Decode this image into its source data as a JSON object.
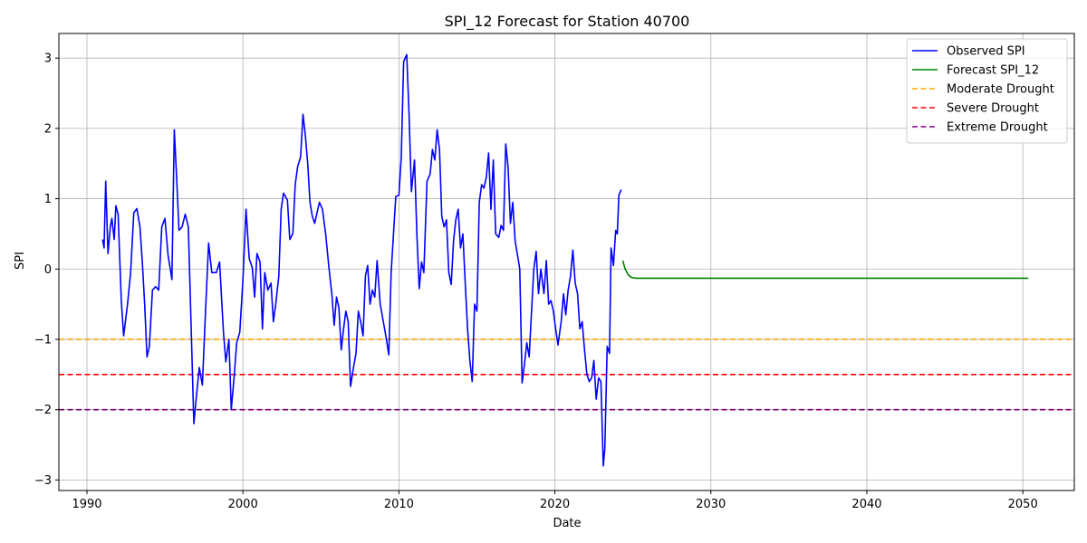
{
  "chart_data": {
    "type": "line",
    "title": "SPI_12 Forecast for Station 40700",
    "xlabel": "Date",
    "ylabel": "SPI",
    "xlim": [
      1988.2,
      2053.3
    ],
    "ylim": [
      -3.15,
      3.35
    ],
    "x_ticks": [
      1990,
      2000,
      2010,
      2020,
      2030,
      2040,
      2050
    ],
    "y_ticks": [
      -3,
      -2,
      -1,
      0,
      1,
      2,
      3
    ],
    "grid": true,
    "legend_position": "top-right",
    "series": [
      {
        "name": "Observed SPI",
        "color": "#0000ff",
        "style": "solid",
        "points": [
          [
            1991.0,
            0.42
          ],
          [
            1991.1,
            0.3
          ],
          [
            1991.2,
            1.25
          ],
          [
            1991.35,
            0.22
          ],
          [
            1991.5,
            0.6
          ],
          [
            1991.6,
            0.72
          ],
          [
            1991.75,
            0.42
          ],
          [
            1991.85,
            0.9
          ],
          [
            1992.0,
            0.78
          ],
          [
            1992.2,
            -0.45
          ],
          [
            1992.35,
            -0.95
          ],
          [
            1992.6,
            -0.5
          ],
          [
            1992.8,
            -0.05
          ],
          [
            1993.0,
            0.8
          ],
          [
            1993.2,
            0.86
          ],
          [
            1993.4,
            0.6
          ],
          [
            1993.55,
            0.1
          ],
          [
            1993.7,
            -0.5
          ],
          [
            1993.85,
            -1.25
          ],
          [
            1994.0,
            -1.1
          ],
          [
            1994.2,
            -0.3
          ],
          [
            1994.4,
            -0.25
          ],
          [
            1994.6,
            -0.3
          ],
          [
            1994.8,
            0.6
          ],
          [
            1995.0,
            0.72
          ],
          [
            1995.2,
            0.2
          ],
          [
            1995.45,
            -0.15
          ],
          [
            1995.6,
            1.98
          ],
          [
            1995.75,
            1.3
          ],
          [
            1995.9,
            0.55
          ],
          [
            1996.1,
            0.6
          ],
          [
            1996.3,
            0.78
          ],
          [
            1996.5,
            0.6
          ],
          [
            1996.7,
            -1.0
          ],
          [
            1996.85,
            -2.2
          ],
          [
            1997.0,
            -1.85
          ],
          [
            1997.2,
            -1.4
          ],
          [
            1997.4,
            -1.65
          ],
          [
            1997.6,
            -0.6
          ],
          [
            1997.8,
            0.37
          ],
          [
            1998.0,
            -0.05
          ],
          [
            1998.3,
            -0.05
          ],
          [
            1998.5,
            0.1
          ],
          [
            1998.75,
            -0.9
          ],
          [
            1998.9,
            -1.32
          ],
          [
            1999.1,
            -1.0
          ],
          [
            1999.25,
            -2.0
          ],
          [
            1999.45,
            -1.5
          ],
          [
            1999.6,
            -1.05
          ],
          [
            1999.8,
            -0.9
          ],
          [
            2000.0,
            -0.15
          ],
          [
            2000.2,
            0.85
          ],
          [
            2000.4,
            0.15
          ],
          [
            2000.6,
            0.02
          ],
          [
            2000.75,
            -0.4
          ],
          [
            2000.9,
            0.22
          ],
          [
            2001.1,
            0.1
          ],
          [
            2001.25,
            -0.85
          ],
          [
            2001.4,
            -0.05
          ],
          [
            2001.6,
            -0.3
          ],
          [
            2001.8,
            -0.2
          ],
          [
            2001.95,
            -0.75
          ],
          [
            2002.1,
            -0.5
          ],
          [
            2002.3,
            -0.1
          ],
          [
            2002.45,
            0.85
          ],
          [
            2002.6,
            1.08
          ],
          [
            2002.85,
            0.98
          ],
          [
            2003.0,
            0.42
          ],
          [
            2003.2,
            0.5
          ],
          [
            2003.35,
            1.2
          ],
          [
            2003.5,
            1.45
          ],
          [
            2003.7,
            1.6
          ],
          [
            2003.85,
            2.2
          ],
          [
            2004.0,
            1.9
          ],
          [
            2004.15,
            1.5
          ],
          [
            2004.3,
            0.95
          ],
          [
            2004.45,
            0.75
          ],
          [
            2004.6,
            0.65
          ],
          [
            2004.75,
            0.8
          ],
          [
            2004.9,
            0.95
          ],
          [
            2005.1,
            0.85
          ],
          [
            2005.3,
            0.5
          ],
          [
            2005.5,
            0.05
          ],
          [
            2005.7,
            -0.35
          ],
          [
            2005.85,
            -0.8
          ],
          [
            2006.0,
            -0.4
          ],
          [
            2006.15,
            -0.55
          ],
          [
            2006.3,
            -1.15
          ],
          [
            2006.45,
            -0.85
          ],
          [
            2006.6,
            -0.6
          ],
          [
            2006.75,
            -0.75
          ],
          [
            2006.9,
            -1.67
          ],
          [
            2007.05,
            -1.45
          ],
          [
            2007.25,
            -1.2
          ],
          [
            2007.4,
            -0.6
          ],
          [
            2007.55,
            -0.75
          ],
          [
            2007.7,
            -0.95
          ],
          [
            2007.85,
            -0.1
          ],
          [
            2008.0,
            0.05
          ],
          [
            2008.15,
            -0.5
          ],
          [
            2008.3,
            -0.3
          ],
          [
            2008.45,
            -0.4
          ],
          [
            2008.6,
            0.12
          ],
          [
            2008.8,
            -0.5
          ],
          [
            2009.0,
            -0.75
          ],
          [
            2009.2,
            -1.0
          ],
          [
            2009.35,
            -1.22
          ],
          [
            2009.5,
            -0.05
          ],
          [
            2009.65,
            0.5
          ],
          [
            2009.8,
            1.03
          ],
          [
            2010.0,
            1.05
          ],
          [
            2010.15,
            1.6
          ],
          [
            2010.3,
            2.95
          ],
          [
            2010.5,
            3.05
          ],
          [
            2010.65,
            2.2
          ],
          [
            2010.8,
            1.1
          ],
          [
            2011.0,
            1.55
          ],
          [
            2011.15,
            0.5
          ],
          [
            2011.3,
            -0.28
          ],
          [
            2011.45,
            0.1
          ],
          [
            2011.6,
            -0.05
          ],
          [
            2011.8,
            1.25
          ],
          [
            2012.0,
            1.35
          ],
          [
            2012.15,
            1.7
          ],
          [
            2012.3,
            1.55
          ],
          [
            2012.45,
            1.98
          ],
          [
            2012.6,
            1.7
          ],
          [
            2012.75,
            0.75
          ],
          [
            2012.9,
            0.6
          ],
          [
            2013.05,
            0.7
          ],
          [
            2013.2,
            -0.05
          ],
          [
            2013.35,
            -0.22
          ],
          [
            2013.5,
            0.4
          ],
          [
            2013.65,
            0.7
          ],
          [
            2013.8,
            0.85
          ],
          [
            2013.95,
            0.3
          ],
          [
            2014.1,
            0.5
          ],
          [
            2014.25,
            -0.2
          ],
          [
            2014.4,
            -0.85
          ],
          [
            2014.55,
            -1.3
          ],
          [
            2014.7,
            -1.6
          ],
          [
            2014.85,
            -0.5
          ],
          [
            2015.0,
            -0.6
          ],
          [
            2015.15,
            0.95
          ],
          [
            2015.3,
            1.2
          ],
          [
            2015.45,
            1.15
          ],
          [
            2015.6,
            1.3
          ],
          [
            2015.75,
            1.65
          ],
          [
            2015.9,
            0.85
          ],
          [
            2016.05,
            1.55
          ],
          [
            2016.2,
            0.5
          ],
          [
            2016.4,
            0.45
          ],
          [
            2016.55,
            0.62
          ],
          [
            2016.7,
            0.55
          ],
          [
            2016.85,
            1.78
          ],
          [
            2017.0,
            1.45
          ],
          [
            2017.15,
            0.65
          ],
          [
            2017.3,
            0.95
          ],
          [
            2017.45,
            0.4
          ],
          [
            2017.6,
            0.2
          ],
          [
            2017.75,
            0.0
          ],
          [
            2017.9,
            -1.62
          ],
          [
            2018.05,
            -1.35
          ],
          [
            2018.2,
            -1.05
          ],
          [
            2018.35,
            -1.25
          ],
          [
            2018.5,
            -0.6
          ],
          [
            2018.65,
            0.0
          ],
          [
            2018.8,
            0.25
          ],
          [
            2018.95,
            -0.35
          ],
          [
            2019.1,
            0.0
          ],
          [
            2019.3,
            -0.35
          ],
          [
            2019.45,
            0.12
          ],
          [
            2019.6,
            -0.5
          ],
          [
            2019.75,
            -0.45
          ],
          [
            2019.9,
            -0.6
          ],
          [
            2020.05,
            -0.85
          ],
          [
            2020.2,
            -1.08
          ],
          [
            2020.4,
            -0.75
          ],
          [
            2020.55,
            -0.35
          ],
          [
            2020.7,
            -0.65
          ],
          [
            2020.85,
            -0.3
          ],
          [
            2021.0,
            -0.1
          ],
          [
            2021.15,
            0.27
          ],
          [
            2021.3,
            -0.2
          ],
          [
            2021.45,
            -0.35
          ],
          [
            2021.6,
            -0.85
          ],
          [
            2021.75,
            -0.75
          ],
          [
            2021.9,
            -1.15
          ],
          [
            2022.05,
            -1.5
          ],
          [
            2022.2,
            -1.6
          ],
          [
            2022.35,
            -1.55
          ],
          [
            2022.5,
            -1.3
          ],
          [
            2022.65,
            -1.85
          ],
          [
            2022.8,
            -1.55
          ],
          [
            2022.95,
            -1.6
          ],
          [
            2023.1,
            -2.8
          ],
          [
            2023.2,
            -2.55
          ],
          [
            2023.35,
            -1.1
          ],
          [
            2023.5,
            -1.2
          ],
          [
            2023.6,
            0.3
          ],
          [
            2023.75,
            0.05
          ],
          [
            2023.9,
            0.55
          ],
          [
            2024.0,
            0.5
          ],
          [
            2024.1,
            1.05
          ],
          [
            2024.25,
            1.13
          ]
        ]
      },
      {
        "name": "Forecast SPI_12",
        "color": "#008000",
        "style": "solid",
        "points": [
          [
            2024.35,
            0.12
          ],
          [
            2024.5,
            0.0
          ],
          [
            2024.7,
            -0.08
          ],
          [
            2024.9,
            -0.12
          ],
          [
            2025.2,
            -0.13
          ],
          [
            2026.0,
            -0.13
          ],
          [
            2030.0,
            -0.13
          ],
          [
            2035.0,
            -0.13
          ],
          [
            2040.0,
            -0.13
          ],
          [
            2045.0,
            -0.13
          ],
          [
            2050.35,
            -0.13
          ]
        ]
      },
      {
        "name": "Moderate Drought",
        "color": "#ffa500",
        "style": "dashed",
        "hline": -1
      },
      {
        "name": "Severe Drought",
        "color": "#ff0000",
        "style": "dashed",
        "hline": -1.5
      },
      {
        "name": "Extreme Drought",
        "color": "#800080",
        "style": "dashed",
        "hline": -2
      }
    ]
  }
}
